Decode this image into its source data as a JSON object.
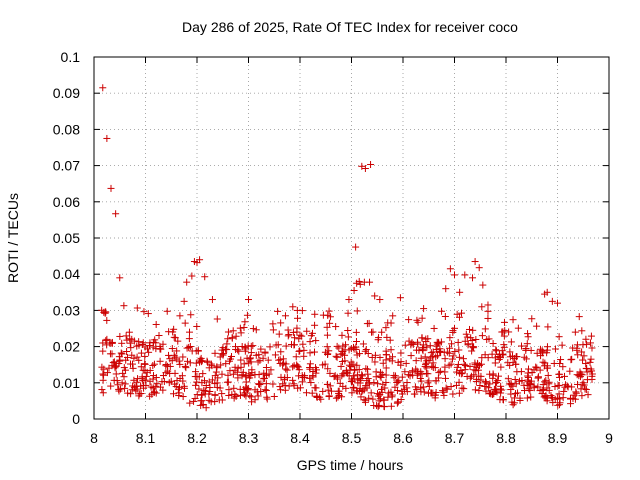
{
  "chart_data": {
    "type": "scatter",
    "title": "Day 286 of 2025, Rate Of TEC Index for receiver coco",
    "xlabel": "GPS time / hours",
    "ylabel": "ROTI / TECUs",
    "xlim": [
      8,
      9
    ],
    "ylim": [
      0,
      0.1
    ],
    "x_ticks": [
      "8",
      "8.1",
      "8.2",
      "8.3",
      "8.4",
      "8.5",
      "8.6",
      "8.7",
      "8.8",
      "8.9",
      "9"
    ],
    "y_ticks": [
      "0",
      "0.01",
      "0.02",
      "0.03",
      "0.04",
      "0.05",
      "0.06",
      "0.07",
      "0.08",
      "0.09",
      "0.1"
    ],
    "grid": true,
    "marker": "+",
    "series": [
      {
        "name": "ROTI",
        "color": "#cc0000",
        "points": [
          [
            8.017,
            0.0915
          ],
          [
            8.025,
            0.0775
          ],
          [
            8.033,
            0.0637
          ],
          [
            8.042,
            0.0567
          ],
          [
            8.05,
            0.039
          ],
          [
            8.058,
            0.0313
          ],
          [
            8.017,
            0.021
          ],
          [
            8.025,
            0.022
          ],
          [
            8.035,
            0.018
          ],
          [
            8.05,
            0.016
          ],
          [
            8.065,
            0.017
          ],
          [
            8.508,
            0.0475
          ],
          [
            8.517,
            0.0372
          ],
          [
            8.52,
            0.0698
          ],
          [
            8.527,
            0.0692
          ],
          [
            8.537,
            0.0703
          ],
          [
            8.18,
            0.0378
          ],
          [
            8.19,
            0.0395
          ],
          [
            8.195,
            0.0435
          ],
          [
            8.2,
            0.0432
          ],
          [
            8.205,
            0.044
          ],
          [
            8.215,
            0.0393
          ],
          [
            8.175,
            0.0325
          ],
          [
            8.505,
            0.0355
          ],
          [
            8.51,
            0.0375
          ],
          [
            8.515,
            0.038
          ],
          [
            8.525,
            0.0378
          ],
          [
            8.535,
            0.0378
          ],
          [
            8.495,
            0.033
          ],
          [
            8.545,
            0.034
          ],
          [
            8.555,
            0.033
          ],
          [
            8.692,
            0.0415
          ],
          [
            8.7,
            0.0398
          ],
          [
            8.71,
            0.035
          ],
          [
            8.72,
            0.0398
          ],
          [
            8.735,
            0.039
          ],
          [
            8.74,
            0.0435
          ],
          [
            8.748,
            0.0418
          ],
          [
            8.755,
            0.037
          ],
          [
            8.683,
            0.036
          ],
          [
            8.875,
            0.0345
          ],
          [
            8.88,
            0.035
          ],
          [
            8.89,
            0.0325
          ],
          [
            8.9,
            0.032
          ],
          [
            8.23,
            0.033
          ],
          [
            8.3,
            0.033
          ],
          [
            8.595,
            0.0335
          ],
          [
            8.64,
            0.0305
          ],
          [
            8.765,
            0.0315
          ],
          [
            8.58,
            0.0285
          ]
        ]
      }
    ]
  }
}
